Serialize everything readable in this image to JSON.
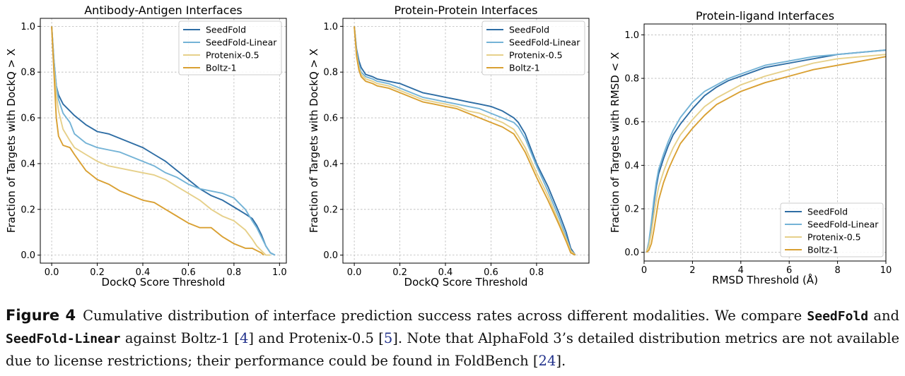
{
  "chart_data": [
    {
      "type": "line",
      "title": "Antibody-Antigen Interfaces",
      "xlabel": "DockQ Score Threshold",
      "ylabel": "Fraction of Targets with DockQ > X",
      "xlim": [
        -0.05,
        1.03
      ],
      "ylim": [
        -0.035,
        1.035
      ],
      "xticks": [
        0.0,
        0.2,
        0.4,
        0.6,
        0.8,
        1.0
      ],
      "xtick_labels": [
        "0.0",
        "0.2",
        "0.4",
        "0.6",
        "0.8",
        "1.0"
      ],
      "yticks": [
        0.0,
        0.2,
        0.4,
        0.6,
        0.8,
        1.0
      ],
      "ytick_labels": [
        "0.0",
        "0.2",
        "0.4",
        "0.6",
        "0.8",
        "1.0"
      ],
      "grid": true,
      "legend_position": "top-right",
      "series": [
        {
          "name": "SeedFold",
          "color": "#2e6da4",
          "x": [
            0.0,
            0.01,
            0.02,
            0.03,
            0.05,
            0.08,
            0.1,
            0.15,
            0.2,
            0.25,
            0.3,
            0.35,
            0.4,
            0.45,
            0.5,
            0.55,
            0.6,
            0.65,
            0.7,
            0.75,
            0.8,
            0.85,
            0.88,
            0.9,
            0.92,
            0.94,
            0.96,
            0.98
          ],
          "y": [
            1.0,
            0.85,
            0.74,
            0.7,
            0.66,
            0.63,
            0.61,
            0.57,
            0.54,
            0.53,
            0.51,
            0.49,
            0.47,
            0.44,
            0.41,
            0.37,
            0.33,
            0.29,
            0.26,
            0.24,
            0.21,
            0.18,
            0.16,
            0.13,
            0.09,
            0.04,
            0.01,
            0.0
          ]
        },
        {
          "name": "SeedFold-Linear",
          "color": "#74b3d6",
          "x": [
            0.0,
            0.01,
            0.02,
            0.03,
            0.05,
            0.08,
            0.1,
            0.15,
            0.2,
            0.25,
            0.3,
            0.35,
            0.4,
            0.45,
            0.5,
            0.55,
            0.6,
            0.65,
            0.7,
            0.75,
            0.8,
            0.85,
            0.88,
            0.9,
            0.92,
            0.94,
            0.96,
            0.98
          ],
          "y": [
            1.0,
            0.85,
            0.74,
            0.68,
            0.62,
            0.58,
            0.53,
            0.49,
            0.47,
            0.46,
            0.45,
            0.43,
            0.41,
            0.39,
            0.36,
            0.34,
            0.31,
            0.29,
            0.28,
            0.27,
            0.25,
            0.2,
            0.15,
            0.12,
            0.08,
            0.04,
            0.01,
            0.0
          ]
        },
        {
          "name": "Protenix-0.5",
          "color": "#e6d08a",
          "x": [
            0.0,
            0.01,
            0.02,
            0.03,
            0.05,
            0.08,
            0.1,
            0.15,
            0.2,
            0.25,
            0.3,
            0.35,
            0.4,
            0.45,
            0.5,
            0.55,
            0.6,
            0.65,
            0.7,
            0.75,
            0.8,
            0.85,
            0.88,
            0.9,
            0.92,
            0.94,
            0.96
          ],
          "y": [
            1.0,
            0.82,
            0.7,
            0.63,
            0.55,
            0.5,
            0.47,
            0.44,
            0.41,
            0.39,
            0.38,
            0.37,
            0.36,
            0.35,
            0.33,
            0.3,
            0.27,
            0.24,
            0.2,
            0.17,
            0.15,
            0.11,
            0.07,
            0.04,
            0.02,
            0.0,
            0.0
          ]
        },
        {
          "name": "Boltz-1",
          "color": "#d9a032",
          "x": [
            0.0,
            0.01,
            0.02,
            0.03,
            0.05,
            0.08,
            0.1,
            0.15,
            0.2,
            0.25,
            0.3,
            0.35,
            0.4,
            0.45,
            0.5,
            0.55,
            0.6,
            0.65,
            0.7,
            0.75,
            0.8,
            0.85,
            0.88,
            0.9,
            0.92,
            0.93
          ],
          "y": [
            1.0,
            0.8,
            0.6,
            0.52,
            0.48,
            0.47,
            0.44,
            0.37,
            0.33,
            0.31,
            0.28,
            0.26,
            0.24,
            0.23,
            0.2,
            0.17,
            0.14,
            0.12,
            0.12,
            0.08,
            0.05,
            0.03,
            0.03,
            0.02,
            0.01,
            0.0
          ]
        }
      ]
    },
    {
      "type": "line",
      "title": "Protein-Protein Interfaces",
      "xlabel": "DockQ Score Threshold",
      "ylabel": "Fraction of Targets with DockQ > X",
      "xlim": [
        -0.05,
        1.03
      ],
      "ylim": [
        -0.035,
        1.035
      ],
      "xticks": [
        0.0,
        0.2,
        0.4,
        0.6,
        0.8
      ],
      "xtick_labels": [
        "0.0",
        "0.2",
        "0.4",
        "0.6",
        "0.8"
      ],
      "yticks": [
        0.0,
        0.2,
        0.4,
        0.6,
        0.8,
        1.0
      ],
      "ytick_labels": [
        "0.0",
        "0.2",
        "0.4",
        "0.6",
        "0.8",
        "1.0"
      ],
      "grid": true,
      "legend_position": "top-right",
      "series": [
        {
          "name": "SeedFold",
          "color": "#2e6da4",
          "x": [
            0.0,
            0.01,
            0.02,
            0.03,
            0.05,
            0.08,
            0.1,
            0.15,
            0.2,
            0.25,
            0.3,
            0.35,
            0.4,
            0.45,
            0.5,
            0.55,
            0.6,
            0.65,
            0.7,
            0.72,
            0.75,
            0.8,
            0.85,
            0.9,
            0.93,
            0.95,
            0.97
          ],
          "y": [
            1.0,
            0.9,
            0.85,
            0.82,
            0.79,
            0.78,
            0.77,
            0.76,
            0.75,
            0.73,
            0.71,
            0.7,
            0.69,
            0.68,
            0.67,
            0.66,
            0.65,
            0.63,
            0.6,
            0.58,
            0.53,
            0.4,
            0.3,
            0.18,
            0.1,
            0.03,
            0.0
          ]
        },
        {
          "name": "SeedFold-Linear",
          "color": "#74b3d6",
          "x": [
            0.0,
            0.01,
            0.02,
            0.03,
            0.05,
            0.08,
            0.1,
            0.15,
            0.2,
            0.25,
            0.3,
            0.35,
            0.4,
            0.45,
            0.5,
            0.55,
            0.6,
            0.65,
            0.7,
            0.72,
            0.75,
            0.8,
            0.85,
            0.9,
            0.93,
            0.95,
            0.97
          ],
          "y": [
            1.0,
            0.89,
            0.83,
            0.8,
            0.78,
            0.77,
            0.76,
            0.75,
            0.73,
            0.71,
            0.69,
            0.68,
            0.67,
            0.66,
            0.65,
            0.64,
            0.62,
            0.6,
            0.58,
            0.56,
            0.51,
            0.39,
            0.28,
            0.16,
            0.08,
            0.02,
            0.0
          ]
        },
        {
          "name": "Protenix-0.5",
          "color": "#e6d08a",
          "x": [
            0.0,
            0.01,
            0.02,
            0.03,
            0.05,
            0.08,
            0.1,
            0.15,
            0.2,
            0.25,
            0.3,
            0.35,
            0.4,
            0.45,
            0.5,
            0.55,
            0.6,
            0.65,
            0.7,
            0.72,
            0.75,
            0.8,
            0.85,
            0.9,
            0.93,
            0.95,
            0.97
          ],
          "y": [
            1.0,
            0.88,
            0.82,
            0.79,
            0.77,
            0.76,
            0.75,
            0.74,
            0.72,
            0.7,
            0.68,
            0.67,
            0.66,
            0.65,
            0.63,
            0.62,
            0.6,
            0.58,
            0.55,
            0.52,
            0.47,
            0.36,
            0.26,
            0.14,
            0.07,
            0.02,
            0.0
          ]
        },
        {
          "name": "Boltz-1",
          "color": "#d9a032",
          "x": [
            0.0,
            0.01,
            0.02,
            0.03,
            0.05,
            0.08,
            0.1,
            0.15,
            0.2,
            0.25,
            0.3,
            0.35,
            0.4,
            0.45,
            0.5,
            0.55,
            0.6,
            0.65,
            0.7,
            0.72,
            0.75,
            0.8,
            0.85,
            0.9,
            0.93,
            0.95,
            0.97
          ],
          "y": [
            1.0,
            0.87,
            0.81,
            0.78,
            0.76,
            0.75,
            0.74,
            0.73,
            0.71,
            0.69,
            0.67,
            0.66,
            0.65,
            0.64,
            0.62,
            0.6,
            0.58,
            0.56,
            0.53,
            0.5,
            0.45,
            0.34,
            0.24,
            0.13,
            0.06,
            0.01,
            0.0
          ]
        }
      ]
    },
    {
      "type": "line",
      "title": "Protein-ligand Interfaces",
      "xlabel": "RMSD Threshold (Å)",
      "ylabel": "Fraction of Targets with RMSD < X",
      "xlim": [
        0,
        10
      ],
      "ylim": [
        -0.04,
        1.05
      ],
      "xticks": [
        0,
        2,
        4,
        6,
        8,
        10
      ],
      "xtick_labels": [
        "0",
        "2",
        "4",
        "6",
        "8",
        "10"
      ],
      "yticks": [
        0.0,
        0.2,
        0.4,
        0.6,
        0.8,
        1.0
      ],
      "ytick_labels": [
        "0.0",
        "0.2",
        "0.4",
        "0.6",
        "0.8",
        "1.0"
      ],
      "grid": true,
      "legend_position": "bottom-right",
      "series": [
        {
          "name": "SeedFold",
          "color": "#2e6da4",
          "x": [
            0.1,
            0.2,
            0.3,
            0.4,
            0.5,
            0.6,
            0.8,
            1.0,
            1.2,
            1.5,
            2.0,
            2.5,
            3.0,
            3.5,
            4.0,
            5.0,
            6.0,
            7.0,
            8.0,
            9.0,
            10.0
          ],
          "y": [
            0.0,
            0.04,
            0.12,
            0.22,
            0.3,
            0.36,
            0.43,
            0.49,
            0.54,
            0.59,
            0.66,
            0.72,
            0.76,
            0.79,
            0.81,
            0.85,
            0.87,
            0.89,
            0.91,
            0.92,
            0.93
          ]
        },
        {
          "name": "SeedFold-Linear",
          "color": "#74b3d6",
          "x": [
            0.1,
            0.2,
            0.3,
            0.4,
            0.5,
            0.6,
            0.8,
            1.0,
            1.2,
            1.5,
            2.0,
            2.5,
            3.0,
            3.5,
            4.0,
            5.0,
            6.0,
            7.0,
            8.0,
            9.0,
            10.0
          ],
          "y": [
            0.0,
            0.05,
            0.14,
            0.24,
            0.32,
            0.38,
            0.45,
            0.51,
            0.56,
            0.62,
            0.69,
            0.74,
            0.77,
            0.8,
            0.82,
            0.86,
            0.88,
            0.9,
            0.91,
            0.92,
            0.93
          ]
        },
        {
          "name": "Protenix-0.5",
          "color": "#e6d08a",
          "x": [
            0.1,
            0.2,
            0.3,
            0.4,
            0.5,
            0.6,
            0.8,
            1.0,
            1.2,
            1.5,
            2.0,
            2.5,
            3.0,
            3.5,
            4.0,
            5.0,
            6.0,
            7.0,
            8.0,
            9.0,
            10.0
          ],
          "y": [
            0.0,
            0.03,
            0.09,
            0.17,
            0.24,
            0.3,
            0.37,
            0.43,
            0.48,
            0.54,
            0.61,
            0.67,
            0.71,
            0.74,
            0.77,
            0.81,
            0.84,
            0.87,
            0.89,
            0.9,
            0.91
          ]
        },
        {
          "name": "Boltz-1",
          "color": "#d9a032",
          "x": [
            0.1,
            0.2,
            0.3,
            0.4,
            0.5,
            0.6,
            0.8,
            1.0,
            1.2,
            1.5,
            2.0,
            2.5,
            3.0,
            3.5,
            4.0,
            5.0,
            6.0,
            7.0,
            8.0,
            9.0,
            10.0
          ],
          "y": [
            0.0,
            0.01,
            0.04,
            0.1,
            0.17,
            0.24,
            0.32,
            0.38,
            0.43,
            0.5,
            0.57,
            0.63,
            0.68,
            0.71,
            0.74,
            0.78,
            0.81,
            0.84,
            0.86,
            0.88,
            0.9
          ]
        }
      ]
    }
  ],
  "caption": {
    "label": "Figure 4",
    "text_1": "Cumulative distribution of interface prediction success rates across different modalities. We compare",
    "model_1": "SeedFold",
    "and": "and",
    "model_2": "SeedFold-Linear",
    "text_2": "against Boltz-1 [",
    "cite_1": "4",
    "text_3": "] and Protenix-0.5 [",
    "cite_2": "5",
    "text_4": "]. Note that AlphaFold 3’s detailed distribution metrics are not available due to license restrictions; their performance could be found in FoldBench [",
    "cite_3": "24",
    "text_5": "]."
  }
}
